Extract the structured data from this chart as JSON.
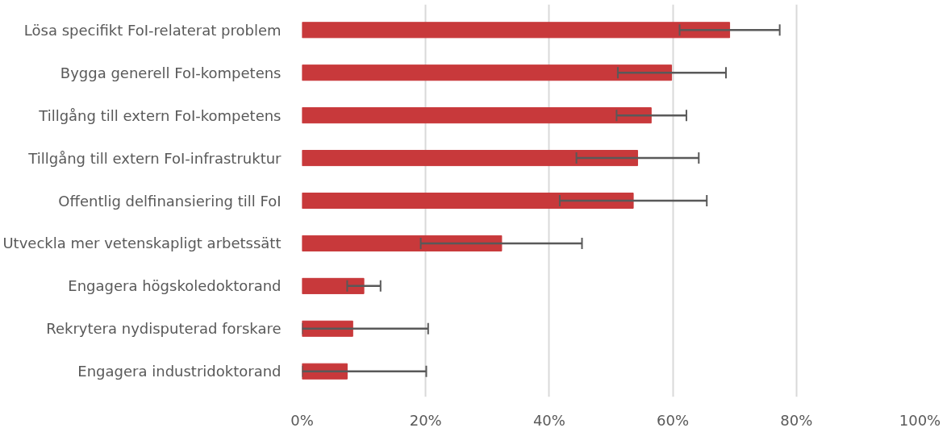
{
  "chart_data": {
    "type": "bar",
    "orientation": "horizontal",
    "categories": [
      "Lösa specifikt FoI-relaterat problem",
      "Bygga generell FoI-kompetens",
      "Tillgång till extern FoI-kompetens",
      "Tillgång till extern FoI-infrastruktur",
      "Offentlig delfinansiering till FoI",
      "Utveckla mer vetenskapligt arbetssätt",
      "Engagera högskoledoktorand",
      "Rekrytera nydisputerad forskare",
      "Engagera industridoktorand"
    ],
    "series": [
      {
        "color": "#c8393b",
        "values": [
          69.2,
          59.8,
          56.5,
          54.3,
          53.6,
          32.3,
          10.0,
          8.2,
          7.3
        ],
        "errors": [
          [
            61.1,
            77.3
          ],
          [
            51.1,
            68.6
          ],
          [
            50.9,
            62.2
          ],
          [
            44.4,
            64.2
          ],
          [
            41.7,
            65.5
          ],
          [
            19.2,
            45.3
          ],
          [
            7.3,
            12.7
          ],
          [
            0,
            20.4
          ],
          [
            0,
            20.1
          ]
        ]
      }
    ],
    "xlim": [
      0,
      100
    ],
    "xticks": [
      {
        "value": 0,
        "label": "0%"
      },
      {
        "value": 20,
        "label": "20%"
      },
      {
        "value": 40,
        "label": "40%"
      },
      {
        "value": 60,
        "label": "60%"
      },
      {
        "value": 80,
        "label": "80%"
      },
      {
        "value": 100,
        "label": "100%"
      }
    ],
    "grid": "x"
  }
}
